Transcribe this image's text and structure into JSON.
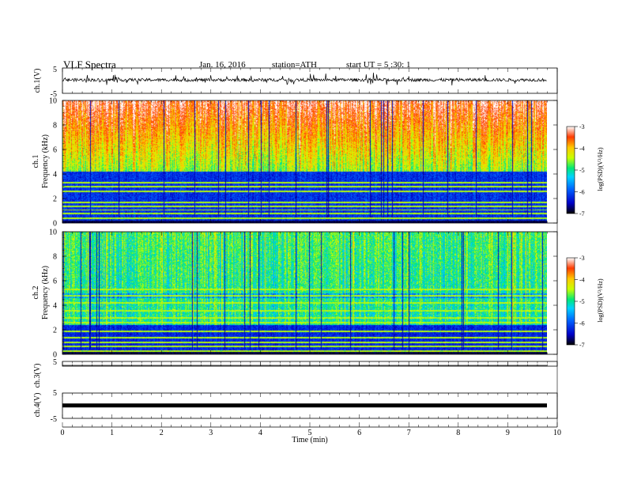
{
  "header": {
    "title": "VLF Spectra",
    "date": "Jan. 16, 2016",
    "station": "station=ATH",
    "start": "start UT = 5 :30: 1"
  },
  "colors": {
    "colormap": [
      "#000000",
      "#0000c8",
      "#0064ff",
      "#00d2ff",
      "#00e878",
      "#c8ff00",
      "#ffc800",
      "#ff3c00",
      "#ffffff"
    ]
  },
  "chart_data": [
    {
      "type": "line",
      "panel": "ch1-waveform",
      "ylabel": "ch.1(V)",
      "yticks": [
        "5",
        "-5"
      ],
      "ylim": [
        -5,
        5
      ],
      "xlim": [
        0,
        10
      ],
      "mean_level": 0.3,
      "noise_amplitude": 0.6
    },
    {
      "type": "heatmap",
      "panel": "ch1-spectrogram",
      "ylabel_top": "ch.1",
      "ylabel": "Frequency (kHz)",
      "yticks": [
        "0",
        "2",
        "4",
        "6",
        "8",
        "10"
      ],
      "ylim": [
        0,
        10
      ],
      "xlim": [
        0,
        9.8
      ],
      "colorbar": {
        "label": "log(PSD)(V²/Hz)",
        "ticks": [
          "-3",
          "-4",
          "-5",
          "-6",
          "-7"
        ],
        "range": [
          -7,
          -3
        ]
      },
      "band_edge_khz": 4.2,
      "lines_khz": [
        0.4,
        0.8,
        1.1,
        1.4,
        1.7,
        2.6,
        3.0,
        3.3
      ]
    },
    {
      "type": "heatmap",
      "panel": "ch2-spectrogram",
      "ylabel_top": "ch.2",
      "ylabel": "Frequency (kHz)",
      "yticks": [
        "0",
        "2",
        "4",
        "6",
        "8",
        "10"
      ],
      "ylim": [
        0,
        10
      ],
      "xlim": [
        0,
        9.8
      ],
      "colorbar": {
        "label": "log(PSD)(V²/Hz)",
        "ticks": [
          "-3",
          "-4",
          "-5",
          "-6",
          "-7"
        ],
        "range": [
          -7,
          -3
        ]
      },
      "band_edge_khz": 2.4,
      "lines_khz": [
        0.3,
        0.7,
        1.0,
        1.4,
        1.9,
        2.6,
        3.0,
        3.6,
        4.2,
        4.8,
        5.3
      ]
    },
    {
      "type": "line",
      "panel": "ch3-waveform",
      "ylabel": "ch.3(V)",
      "yticks": [
        "5"
      ],
      "ylim": [
        -5,
        5
      ],
      "xlim": [
        0,
        10
      ]
    },
    {
      "type": "line",
      "panel": "ch4-waveform",
      "ylabel": "ch.4(V)",
      "yticks": [
        "5",
        "-5"
      ],
      "ylim": [
        -5,
        5
      ],
      "xlim": [
        0,
        10
      ],
      "mean_level": 0.1
    },
    {
      "type": "axis",
      "panel": "time-axis",
      "xlabel": "Time (min)",
      "xticks": [
        "0",
        "1",
        "2",
        "3",
        "4",
        "5",
        "6",
        "7",
        "8",
        "9",
        "10"
      ],
      "xlim": [
        0,
        10
      ]
    }
  ]
}
